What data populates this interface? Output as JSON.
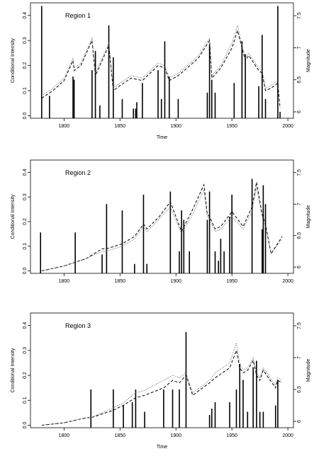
{
  "chart_data": [
    {
      "type": "line",
      "region_label": "Region 1",
      "xlabel": "Time",
      "ylabel": "Conditional Intensity",
      "y2label": "Magnitude",
      "xlim": [
        1770,
        2005
      ],
      "ylim": [
        -0.01,
        0.45
      ],
      "y2lim": [
        5.9,
        7.7
      ],
      "xticks": [
        "1800",
        "1850",
        "1900",
        "1950",
        "2000"
      ],
      "yticks": [
        "0.0",
        "0.1",
        "0.2",
        "0.3",
        "0.4"
      ],
      "y2ticks": [
        "6",
        "6.5",
        "7",
        "7.5"
      ],
      "show_xticklabels": true,
      "show_xlabel": true,
      "events": [
        {
          "x": 1780,
          "m": 7.65
        },
        {
          "x": 1787,
          "m": 6.25
        },
        {
          "x": 1808,
          "m": 6.55
        },
        {
          "x": 1809,
          "m": 6.5
        },
        {
          "x": 1825,
          "m": 6.65
        },
        {
          "x": 1828,
          "m": 6.95
        },
        {
          "x": 1832,
          "m": 6.1
        },
        {
          "x": 1840,
          "m": 7.35
        },
        {
          "x": 1844,
          "m": 6.85
        },
        {
          "x": 1852,
          "m": 6.2
        },
        {
          "x": 1862,
          "m": 6.05
        },
        {
          "x": 1864,
          "m": 6.05
        },
        {
          "x": 1865,
          "m": 6.15
        },
        {
          "x": 1870,
          "m": 6.45
        },
        {
          "x": 1884,
          "m": 6.65
        },
        {
          "x": 1887,
          "m": 6.2
        },
        {
          "x": 1890,
          "m": 7.1
        },
        {
          "x": 1894,
          "m": 6.55
        },
        {
          "x": 1902,
          "m": 6.2
        },
        {
          "x": 1928,
          "m": 6.3
        },
        {
          "x": 1930,
          "m": 7.05
        },
        {
          "x": 1932,
          "m": 6.5
        },
        {
          "x": 1935,
          "m": 6.3
        },
        {
          "x": 1952,
          "m": 6.45
        },
        {
          "x": 1959,
          "m": 7.1
        },
        {
          "x": 1962,
          "m": 6.9
        },
        {
          "x": 1974,
          "m": 6.4
        },
        {
          "x": 1977,
          "m": 7.2
        },
        {
          "x": 1980,
          "m": 6.2
        },
        {
          "x": 1991,
          "m": 7.65
        },
        {
          "x": 1993,
          "m": 6.0
        }
      ],
      "series": [
        {
          "name": "",
          "style": "dashed",
          "x": [
            1780,
            1790,
            1800,
            1808,
            1809,
            1815,
            1825,
            1828,
            1832,
            1840,
            1844,
            1850,
            1860,
            1870,
            1884,
            1890,
            1894,
            1902,
            1910,
            1920,
            1930,
            1932,
            1940,
            1950,
            1955,
            1959,
            1962,
            1965,
            1974,
            1977,
            1980,
            1985,
            1991,
            1993
          ],
          "values": [
            0.07,
            0.1,
            0.14,
            0.22,
            0.18,
            0.2,
            0.3,
            0.16,
            0.2,
            0.28,
            0.1,
            0.12,
            0.15,
            0.14,
            0.2,
            0.19,
            0.14,
            0.16,
            0.19,
            0.23,
            0.3,
            0.15,
            0.19,
            0.27,
            0.34,
            0.27,
            0.22,
            0.24,
            0.18,
            0.17,
            0.1,
            0.11,
            0.13,
            0.03
          ]
        },
        {
          "name": "",
          "style": "dotted",
          "x": [
            1780,
            1790,
            1800,
            1808,
            1809,
            1815,
            1825,
            1828,
            1832,
            1840,
            1844,
            1850,
            1860,
            1870,
            1884,
            1890,
            1894,
            1902,
            1910,
            1920,
            1930,
            1932,
            1940,
            1950,
            1955,
            1959,
            1962,
            1965,
            1974,
            1977,
            1980,
            1985,
            1991
          ],
          "values": [
            0.08,
            0.11,
            0.15,
            0.23,
            0.19,
            0.21,
            0.31,
            0.17,
            0.21,
            0.29,
            0.11,
            0.13,
            0.16,
            0.15,
            0.21,
            0.2,
            0.15,
            0.17,
            0.2,
            0.24,
            0.31,
            0.16,
            0.2,
            0.29,
            0.36,
            0.28,
            0.23,
            0.25,
            0.19,
            0.18,
            0.11,
            0.12,
            0.14
          ]
        }
      ]
    },
    {
      "type": "line",
      "region_label": "Region 2",
      "xlabel": "",
      "ylabel": "Conditional Intensity",
      "y2label": "Magnitude",
      "xlim": [
        1770,
        2005
      ],
      "ylim": [
        -0.01,
        0.45
      ],
      "y2lim": [
        5.9,
        7.7
      ],
      "xticks": [
        "1800",
        "1850",
        "1900",
        "1950",
        "2000"
      ],
      "yticks": [
        "0.0",
        "0.1",
        "0.2",
        "0.3",
        "0.4"
      ],
      "y2ticks": [
        "6",
        "6.5",
        "7",
        "7.5"
      ],
      "show_xticklabels": true,
      "show_xlabel": false,
      "events": [
        {
          "x": 1779,
          "m": 6.55
        },
        {
          "x": 1810,
          "m": 6.55
        },
        {
          "x": 1834,
          "m": 6.2
        },
        {
          "x": 1838,
          "m": 7.0
        },
        {
          "x": 1852,
          "m": 6.9
        },
        {
          "x": 1863,
          "m": 6.05
        },
        {
          "x": 1871,
          "m": 7.15
        },
        {
          "x": 1874,
          "m": 6.05
        },
        {
          "x": 1895,
          "m": 7.2
        },
        {
          "x": 1903,
          "m": 6.25
        },
        {
          "x": 1905,
          "m": 6.9
        },
        {
          "x": 1907,
          "m": 6.75
        },
        {
          "x": 1912,
          "m": 6.25
        },
        {
          "x": 1928,
          "m": 6.75
        },
        {
          "x": 1930,
          "m": 7.2
        },
        {
          "x": 1935,
          "m": 6.25
        },
        {
          "x": 1938,
          "m": 6.1
        },
        {
          "x": 1940,
          "m": 6.45
        },
        {
          "x": 1943,
          "m": 6.25
        },
        {
          "x": 1948,
          "m": 6.8
        },
        {
          "x": 1950,
          "m": 7.15
        },
        {
          "x": 1968,
          "m": 7.4
        },
        {
          "x": 1977,
          "m": 6.6
        },
        {
          "x": 1978,
          "m": 7.3
        },
        {
          "x": 1980,
          "m": 7.0
        }
      ],
      "series": [
        {
          "name": "",
          "style": "dashed",
          "x": [
            1780,
            1800,
            1820,
            1834,
            1838,
            1852,
            1863,
            1871,
            1874,
            1885,
            1895,
            1905,
            1915,
            1925,
            1928,
            1930,
            1935,
            1940,
            1950,
            1960,
            1968,
            1972,
            1977,
            1980,
            1985,
            1995
          ],
          "values": [
            0.0,
            0.02,
            0.05,
            0.09,
            0.09,
            0.11,
            0.14,
            0.19,
            0.17,
            0.22,
            0.28,
            0.16,
            0.25,
            0.35,
            0.23,
            0.22,
            0.17,
            0.18,
            0.24,
            0.18,
            0.26,
            0.36,
            0.23,
            0.19,
            0.07,
            0.14
          ]
        },
        {
          "name": "",
          "style": "dotted",
          "x": [
            1780,
            1800,
            1820,
            1834,
            1838,
            1852,
            1863,
            1871,
            1874,
            1885,
            1895,
            1905,
            1915,
            1925,
            1928,
            1930,
            1935,
            1940,
            1950,
            1960,
            1968,
            1972,
            1977,
            1980,
            1985,
            1995
          ],
          "values": [
            0.0,
            0.02,
            0.05,
            0.08,
            0.08,
            0.1,
            0.13,
            0.18,
            0.16,
            0.21,
            0.26,
            0.15,
            0.23,
            0.33,
            0.22,
            0.21,
            0.16,
            0.17,
            0.22,
            0.17,
            0.24,
            0.34,
            0.22,
            0.18,
            0.07,
            0.13
          ]
        }
      ]
    },
    {
      "type": "line",
      "region_label": "Region 3",
      "xlabel": "Time",
      "ylabel": "Conditional Intensity",
      "y2label": "Magnitude",
      "xlim": [
        1770,
        2005
      ],
      "ylim": [
        -0.01,
        0.45
      ],
      "y2lim": [
        5.9,
        7.7
      ],
      "xticks": [
        "1800",
        "1850",
        "1900",
        "1950",
        "2000"
      ],
      "yticks": [
        "0.0",
        "0.1",
        "0.2",
        "0.3",
        "0.4"
      ],
      "y2ticks": [
        "6",
        "6.5",
        "7",
        "7.5"
      ],
      "show_xticklabels": true,
      "show_xlabel": true,
      "events": [
        {
          "x": 1824,
          "m": 6.5
        },
        {
          "x": 1844,
          "m": 6.5
        },
        {
          "x": 1853,
          "m": 6.25
        },
        {
          "x": 1861,
          "m": 6.3
        },
        {
          "x": 1864,
          "m": 6.5
        },
        {
          "x": 1872,
          "m": 6.15
        },
        {
          "x": 1889,
          "m": 6.5
        },
        {
          "x": 1897,
          "m": 6.5
        },
        {
          "x": 1903,
          "m": 6.5
        },
        {
          "x": 1909,
          "m": 7.4
        },
        {
          "x": 1930,
          "m": 6.1
        },
        {
          "x": 1932,
          "m": 6.2
        },
        {
          "x": 1935,
          "m": 6.3
        },
        {
          "x": 1948,
          "m": 6.3
        },
        {
          "x": 1954,
          "m": 6.5
        },
        {
          "x": 1957,
          "m": 6.9
        },
        {
          "x": 1960,
          "m": 6.65
        },
        {
          "x": 1964,
          "m": 6.15
        },
        {
          "x": 1969,
          "m": 6.85
        },
        {
          "x": 1972,
          "m": 6.95
        },
        {
          "x": 1975,
          "m": 6.15
        },
        {
          "x": 1978,
          "m": 6.15
        },
        {
          "x": 1989,
          "m": 6.25
        },
        {
          "x": 1991,
          "m": 6.65
        }
      ],
      "series": [
        {
          "name": "",
          "style": "dashed",
          "x": [
            1780,
            1800,
            1820,
            1824,
            1844,
            1853,
            1864,
            1872,
            1889,
            1897,
            1903,
            1909,
            1915,
            1930,
            1935,
            1948,
            1954,
            1957,
            1960,
            1964,
            1969,
            1972,
            1975,
            1978,
            1989,
            1991,
            1995
          ],
          "values": [
            0.0,
            0.01,
            0.03,
            0.03,
            0.06,
            0.08,
            0.11,
            0.12,
            0.15,
            0.18,
            0.17,
            0.2,
            0.12,
            0.17,
            0.19,
            0.23,
            0.3,
            0.23,
            0.21,
            0.22,
            0.26,
            0.2,
            0.18,
            0.22,
            0.15,
            0.18,
            0.17
          ]
        },
        {
          "name": "",
          "style": "dotted",
          "x": [
            1780,
            1800,
            1820,
            1824,
            1844,
            1853,
            1864,
            1872,
            1889,
            1897,
            1903,
            1909,
            1915,
            1930,
            1935,
            1948,
            1954,
            1957,
            1960,
            1964,
            1969,
            1972,
            1975,
            1978,
            1989,
            1991,
            1995
          ],
          "values": [
            0.0,
            0.01,
            0.03,
            0.03,
            0.07,
            0.09,
            0.13,
            0.14,
            0.18,
            0.2,
            0.19,
            0.21,
            0.13,
            0.18,
            0.21,
            0.25,
            0.33,
            0.25,
            0.22,
            0.23,
            0.27,
            0.21,
            0.19,
            0.23,
            0.16,
            0.19,
            0.18
          ]
        }
      ]
    }
  ]
}
